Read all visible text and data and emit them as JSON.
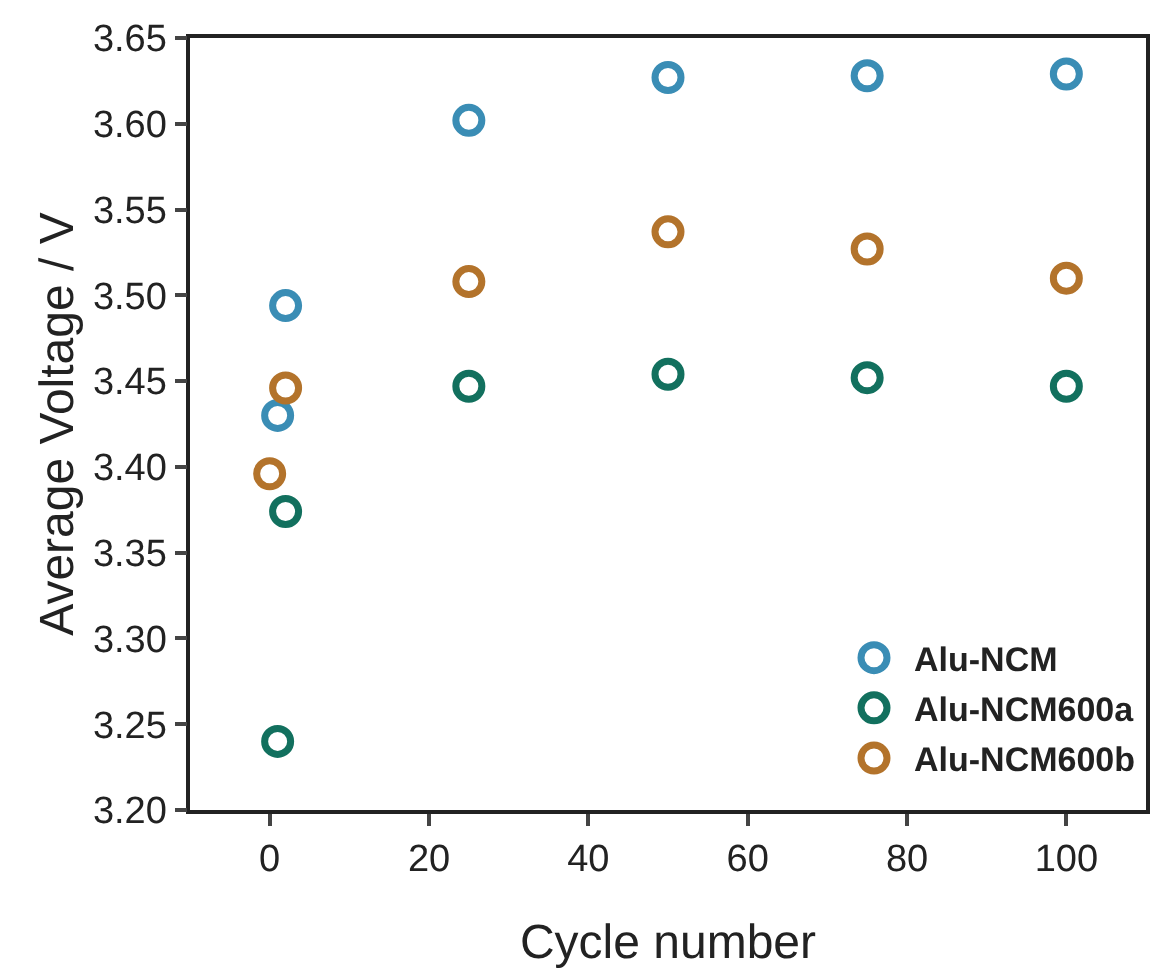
{
  "chart_data": {
    "type": "scatter",
    "xlabel": "Cycle number",
    "ylabel": "Average Voltage / V",
    "xlim": [
      -10,
      110
    ],
    "xticks": [
      0,
      20,
      40,
      60,
      80,
      100
    ],
    "ylim": [
      3.2,
      3.65
    ],
    "yticks": [
      {
        "value": 3.2,
        "label": "3.20"
      },
      {
        "value": 3.25,
        "label": "3.25"
      },
      {
        "value": 3.3,
        "label": "3.30"
      },
      {
        "value": 3.35,
        "label": "3.35"
      },
      {
        "value": 3.4,
        "label": "3.40"
      },
      {
        "value": 3.45,
        "label": "3.45"
      },
      {
        "value": 3.5,
        "label": "3.50"
      },
      {
        "value": 3.55,
        "label": "3.55"
      },
      {
        "value": 3.6,
        "label": "3.60"
      },
      {
        "value": 3.65,
        "label": "3.65"
      }
    ],
    "marker": "circle",
    "grid": false,
    "legend": "bottom right",
    "series": [
      {
        "name": "Alu-NCM",
        "color": "#3a8db5",
        "x": [
          1,
          2,
          25,
          50,
          75,
          100
        ],
        "values": [
          3.43,
          3.494,
          3.602,
          3.627,
          3.628,
          3.629
        ]
      },
      {
        "name": "Alu-NCM600a",
        "color": "#12705e",
        "x": [
          1,
          2,
          25,
          50,
          75,
          100
        ],
        "values": [
          3.24,
          3.374,
          3.447,
          3.454,
          3.452,
          3.447
        ]
      },
      {
        "name": "Alu-NCM600b",
        "color": "#b3732b",
        "x": [
          0,
          2,
          25,
          50,
          75,
          100
        ],
        "values": [
          3.396,
          3.446,
          3.508,
          3.537,
          3.527,
          3.51
        ]
      }
    ]
  }
}
